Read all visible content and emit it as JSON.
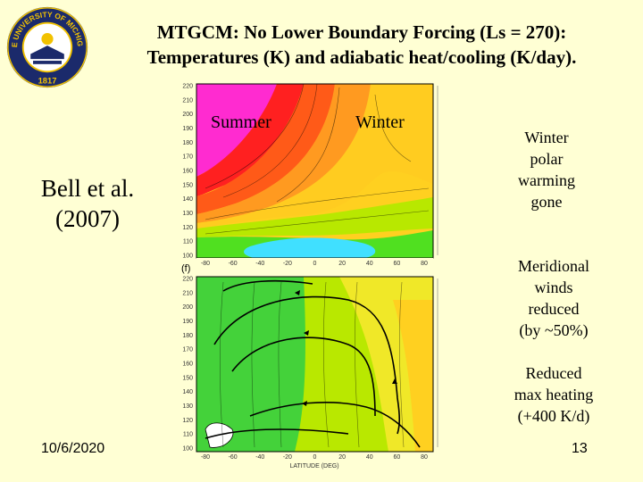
{
  "title": {
    "line1": "MTGCM: No Lower Boundary Forcing (Ls = 270):",
    "line2": "Temperatures (K) and adiabatic heat/cooling (K/day)."
  },
  "logo": {
    "text_top": "THE UNIVERSITY OF MICHIGAN",
    "year": "1817",
    "colors": {
      "navy": "#1b2a6b",
      "maize": "#f2c200"
    }
  },
  "left_label": {
    "line1": "Bell et al.",
    "line2": "(2007)"
  },
  "figure": {
    "top_panel": {
      "label_summer": "Summer",
      "label_winter": "Winter",
      "y_ticks": [
        "220",
        "210",
        "200",
        "190",
        "180",
        "170",
        "160",
        "150",
        "140",
        "130",
        "120",
        "110",
        "100"
      ],
      "x_ticks": [
        "-80",
        "-60",
        "-40",
        "-20",
        "0",
        "20",
        "40",
        "60",
        "80"
      ]
    },
    "bottom_panel": {
      "panel_tag": "(f)",
      "y_ticks": [
        "220",
        "210",
        "200",
        "190",
        "180",
        "170",
        "160",
        "150",
        "140",
        "130",
        "120",
        "110",
        "100"
      ],
      "x_ticks": [
        "-80",
        "-60",
        "-40",
        "-20",
        "0",
        "20",
        "40",
        "60",
        "80"
      ],
      "xlabel": "LATITUDE (DEG)"
    }
  },
  "notes": {
    "winter_warming": [
      "Winter",
      "polar",
      "warming",
      "gone"
    ],
    "meridional": [
      "Meridional",
      "winds",
      "reduced",
      "(by ~50%)"
    ],
    "heating": [
      "Reduced",
      "max heating",
      "(+400 K/d)"
    ]
  },
  "footer": {
    "date": "10/6/2020",
    "page": "13"
  }
}
